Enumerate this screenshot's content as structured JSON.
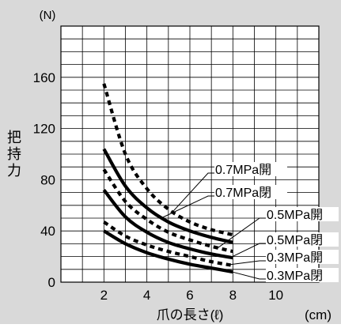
{
  "chart_data": {
    "type": "line",
    "ylabel": "把持力",
    "y_unit": "(N)",
    "xlabel": "爪の長さ(ℓ)",
    "x_unit": "(cm)",
    "xlim": [
      0,
      12
    ],
    "ylim": [
      0,
      200
    ],
    "x_tick_labels": [
      "2",
      "4",
      "6",
      "8",
      "10"
    ],
    "y_tick_labels": [
      "0",
      "40",
      "80",
      "120",
      "160"
    ],
    "grid": true,
    "background_color": "#d9d9d9",
    "plot_background": "#ffffff",
    "line_color": "#000000",
    "series": [
      {
        "name": "0.7MPa開",
        "style": "dashed",
        "x": [
          2,
          3,
          4,
          5,
          6,
          7,
          8
        ],
        "y": [
          155,
          100,
          73,
          57,
          47,
          41,
          37
        ]
      },
      {
        "name": "0.7MPa閉",
        "style": "solid",
        "x": [
          2,
          3,
          4,
          5,
          6,
          7,
          8
        ],
        "y": [
          104,
          75,
          58,
          47,
          40,
          35,
          31
        ]
      },
      {
        "name": "0.5MPa開",
        "style": "dashed",
        "x": [
          2,
          3,
          4,
          5,
          6,
          7,
          8
        ],
        "y": [
          88,
          63,
          49,
          39,
          33,
          28,
          24
        ]
      },
      {
        "name": "0.5MPa閉",
        "style": "solid",
        "x": [
          2,
          3,
          4,
          5,
          6,
          7,
          8
        ],
        "y": [
          72,
          51,
          39,
          31,
          26,
          22,
          19
        ]
      },
      {
        "name": "0.3MPa開",
        "style": "dashed",
        "x": [
          2,
          3,
          4,
          5,
          6,
          7,
          8
        ],
        "y": [
          47,
          36,
          29,
          24,
          20,
          16,
          13
        ]
      },
      {
        "name": "0.3MPa閉",
        "style": "solid",
        "x": [
          2,
          3,
          4,
          5,
          6,
          7,
          8
        ],
        "y": [
          40,
          30,
          23,
          18,
          14,
          11,
          8
        ]
      }
    ]
  }
}
